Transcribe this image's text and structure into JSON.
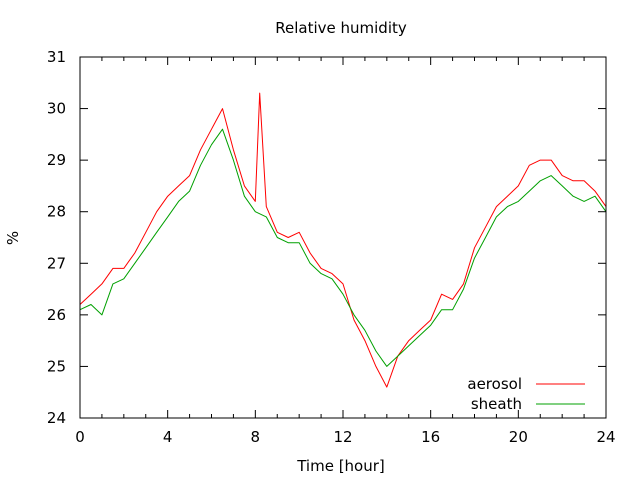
{
  "chart_data": {
    "type": "line",
    "title": "Relative humidity",
    "xlabel": "Time [hour]",
    "ylabel": "%",
    "xlim": [
      0,
      24
    ],
    "ylim": [
      24,
      31
    ],
    "xticks": [
      0,
      4,
      8,
      12,
      16,
      20,
      24
    ],
    "yticks": [
      24,
      25,
      26,
      27,
      28,
      29,
      30,
      31
    ],
    "grid": false,
    "legend_position": "bottom-right",
    "series": [
      {
        "name": "aerosol",
        "color": "#ff0000",
        "x": [
          0,
          0.5,
          1,
          1.5,
          2,
          2.5,
          3,
          3.5,
          4,
          4.5,
          5,
          5.5,
          6,
          6.5,
          7,
          7.5,
          8,
          8.2,
          8.5,
          9,
          9.5,
          10,
          10.5,
          11,
          11.5,
          12,
          12.5,
          13,
          13.5,
          14,
          14.5,
          15,
          15.5,
          16,
          16.5,
          17,
          17.5,
          18,
          18.5,
          19,
          19.5,
          20,
          20.5,
          21,
          21.5,
          22,
          22.5,
          23,
          23.5,
          24
        ],
        "y": [
          26.2,
          26.4,
          26.6,
          26.9,
          26.9,
          27.2,
          27.6,
          28.0,
          28.3,
          28.5,
          28.7,
          29.2,
          29.6,
          30.0,
          29.2,
          28.5,
          28.2,
          30.3,
          28.1,
          27.6,
          27.5,
          27.6,
          27.2,
          26.9,
          26.8,
          26.6,
          25.9,
          25.5,
          25.0,
          24.6,
          25.2,
          25.5,
          25.7,
          25.9,
          26.4,
          26.3,
          26.6,
          27.3,
          27.7,
          28.1,
          28.3,
          28.5,
          28.9,
          29.0,
          29.0,
          28.7,
          28.6,
          28.6,
          28.4,
          28.1
        ]
      },
      {
        "name": "sheath",
        "color": "#00a000",
        "x": [
          0,
          0.5,
          1,
          1.5,
          2,
          2.5,
          3,
          3.5,
          4,
          4.5,
          5,
          5.5,
          6,
          6.5,
          7,
          7.5,
          8,
          8.5,
          9,
          9.5,
          10,
          10.5,
          11,
          11.5,
          12,
          12.5,
          13,
          13.5,
          14,
          14.5,
          15,
          15.5,
          16,
          16.5,
          17,
          17.5,
          18,
          18.5,
          19,
          19.5,
          20,
          20.5,
          21,
          21.5,
          22,
          22.5,
          23,
          23.5,
          24
        ],
        "y": [
          26.1,
          26.2,
          26.0,
          26.6,
          26.7,
          27.0,
          27.3,
          27.6,
          27.9,
          28.2,
          28.4,
          28.9,
          29.3,
          29.6,
          29.0,
          28.3,
          28.0,
          27.9,
          27.5,
          27.4,
          27.4,
          27.0,
          26.8,
          26.7,
          26.4,
          26.0,
          25.7,
          25.3,
          25.0,
          25.2,
          25.4,
          25.6,
          25.8,
          26.1,
          26.1,
          26.5,
          27.1,
          27.5,
          27.9,
          28.1,
          28.2,
          28.4,
          28.6,
          28.7,
          28.5,
          28.3,
          28.2,
          28.3,
          28.0
        ]
      }
    ]
  }
}
